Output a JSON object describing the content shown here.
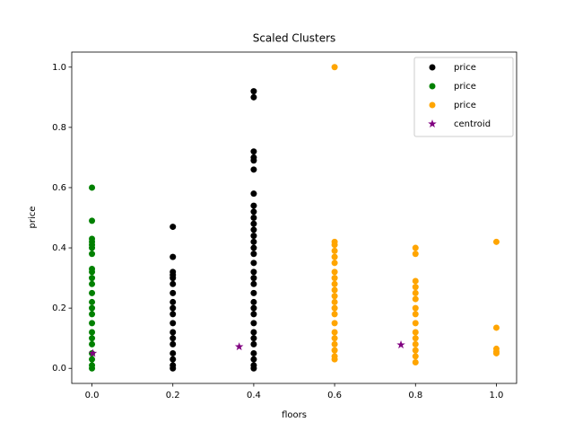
{
  "chart_data": {
    "type": "scatter",
    "title": "Scaled Clusters",
    "x_label": "floors",
    "y_label": "price",
    "xlim": [
      -0.05,
      1.05
    ],
    "ylim": [
      -0.05,
      1.05
    ],
    "xticks": [
      {
        "value": 0,
        "label": "0.0"
      },
      0.2,
      0.4,
      0.6,
      0.8,
      {
        "value": 1,
        "label": "1.0"
      }
    ],
    "yticks": [
      {
        "value": 0,
        "label": "0.0"
      },
      0.2,
      0.4,
      0.6,
      0.8,
      {
        "value": 1,
        "label": "1.0"
      }
    ],
    "legend": "upper right",
    "series": [
      {
        "name": "price",
        "color": "#000000",
        "marker": "circle",
        "x": [
          0.2,
          0.2,
          0.2,
          0.2,
          0.2,
          0.2,
          0.2,
          0.2,
          0.2,
          0.2,
          0.2,
          0.2,
          0.2,
          0.2,
          0.2,
          0.2,
          0.2,
          0.2,
          0.4,
          0.4,
          0.4,
          0.4,
          0.4,
          0.4,
          0.4,
          0.4,
          0.4,
          0.4,
          0.4,
          0.4,
          0.4,
          0.4,
          0.4,
          0.4,
          0.4,
          0.4,
          0.4,
          0.4,
          0.4,
          0.4,
          0.4,
          0.4,
          0.4,
          0.4,
          0.4,
          0.4,
          0.4,
          0.4,
          0.4,
          0.4
        ],
        "values": [
          0.47,
          0.37,
          0.32,
          0.31,
          0.3,
          0.28,
          0.25,
          0.22,
          0.2,
          0.18,
          0.15,
          0.12,
          0.1,
          0.08,
          0.05,
          0.03,
          0.01,
          0.0,
          0.92,
          0.9,
          0.72,
          0.7,
          0.69,
          0.66,
          0.58,
          0.54,
          0.52,
          0.5,
          0.48,
          0.46,
          0.44,
          0.42,
          0.4,
          0.38,
          0.35,
          0.32,
          0.3,
          0.28,
          0.25,
          0.22,
          0.2,
          0.18,
          0.15,
          0.12,
          0.1,
          0.08,
          0.05,
          0.03,
          0.01,
          0.0
        ]
      },
      {
        "name": "price",
        "color": "#008000",
        "marker": "circle",
        "x": [
          0,
          0,
          0,
          0,
          0,
          0,
          0,
          0,
          0,
          0,
          0,
          0,
          0,
          0,
          0,
          0,
          0,
          0,
          0,
          0,
          0,
          0,
          0
        ],
        "values": [
          0.6,
          0.49,
          0.43,
          0.42,
          0.41,
          0.4,
          0.38,
          0.33,
          0.32,
          0.3,
          0.28,
          0.25,
          0.22,
          0.2,
          0.18,
          0.15,
          0.12,
          0.1,
          0.08,
          0.05,
          0.03,
          0.01,
          0.0
        ]
      },
      {
        "name": "price",
        "color": "#ffa500",
        "marker": "circle",
        "x": [
          0.6,
          0.6,
          0.6,
          0.6,
          0.6,
          0.6,
          0.6,
          0.6,
          0.6,
          0.6,
          0.6,
          0.6,
          0.6,
          0.6,
          0.6,
          0.6,
          0.6,
          0.6,
          0.6,
          0.6,
          0.6,
          0.8,
          0.8,
          0.8,
          0.8,
          0.8,
          0.8,
          0.8,
          0.8,
          0.8,
          0.8,
          0.8,
          0.8,
          0.8,
          0.8,
          0.8,
          1,
          1,
          1,
          1,
          1
        ],
        "values": [
          1.0,
          0.42,
          0.41,
          0.39,
          0.37,
          0.35,
          0.32,
          0.3,
          0.28,
          0.26,
          0.24,
          0.22,
          0.2,
          0.18,
          0.15,
          0.12,
          0.1,
          0.08,
          0.06,
          0.04,
          0.03,
          0.4,
          0.38,
          0.29,
          0.27,
          0.25,
          0.23,
          0.2,
          0.18,
          0.15,
          0.12,
          0.1,
          0.08,
          0.06,
          0.04,
          0.02,
          0.42,
          0.135,
          0.065,
          0.055,
          0.05
        ]
      },
      {
        "name": "centroid",
        "color": "#800080",
        "marker": "star",
        "x": [
          0.002,
          0.364,
          0.764
        ],
        "values": [
          0.05,
          0.072,
          0.078
        ]
      }
    ]
  }
}
